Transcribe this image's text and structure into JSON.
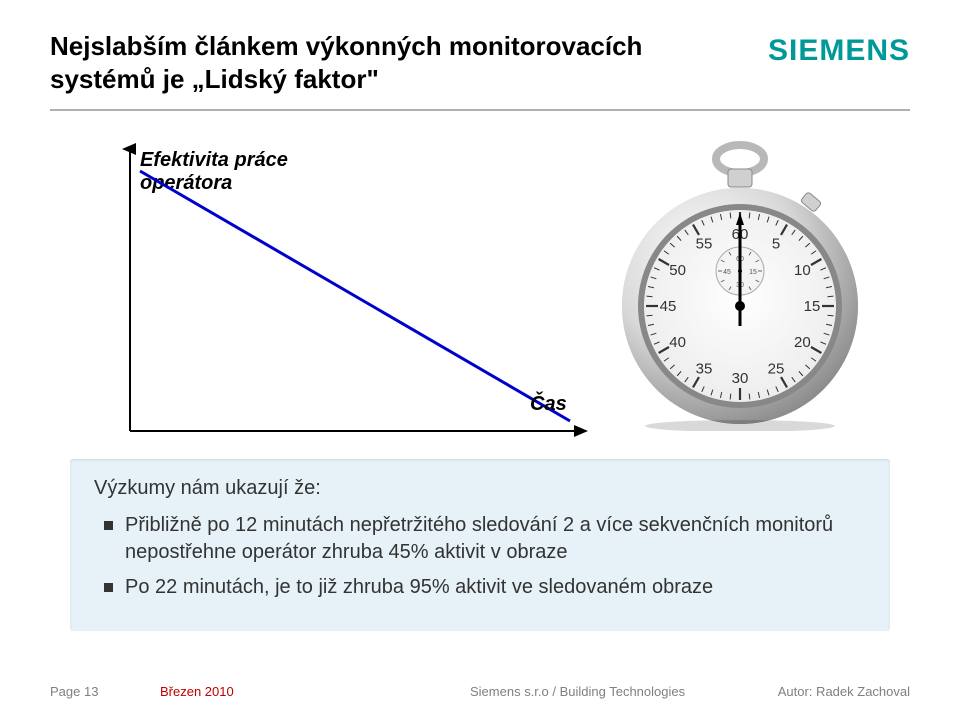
{
  "brand": {
    "name": "SIEMENS",
    "color": "#009999"
  },
  "title": {
    "line1": "Nejslabším článkem výkonných monitorovacích",
    "line2": "systémů je „Lidský faktor\"",
    "fontsize": 26,
    "fontweight": "bold",
    "color": "#000000"
  },
  "chart": {
    "type": "line",
    "ylabel_line1": "Efektivita práce",
    "ylabel_line2": "operátora",
    "xlabel": "Čas",
    "label_fontsize": 20,
    "label_style": "italic bold",
    "axis_color": "#000000",
    "axis_width": 2,
    "line_color": "#0000cc",
    "line_width": 3,
    "background_color": "#ffffff",
    "points": [
      {
        "x": 0.02,
        "y": 0.95
      },
      {
        "x": 0.98,
        "y": 0.05
      }
    ],
    "xlim": [
      0,
      1
    ],
    "ylim": [
      0,
      1
    ]
  },
  "stopwatch": {
    "type": "infographic-icon",
    "case_color": "#d8d8d8",
    "case_highlight": "#f8f8f8",
    "case_shadow": "#808080",
    "face_color": "#ffffff",
    "tick_color": "#333333",
    "number_color": "#333333",
    "hand_color": "#000000",
    "crown_color": "#d0d0d0",
    "bow_color": "#c0c0c0",
    "subdial_color": "#f4f4f4",
    "numbers": [
      "60",
      "5",
      "10",
      "15",
      "20",
      "25",
      "30",
      "35",
      "40",
      "45",
      "50",
      "55"
    ],
    "subdial_numbers": [
      "60",
      "15",
      "30",
      "45"
    ]
  },
  "bullets": {
    "box_bg": "#e6f2f8",
    "lead": "Výzkumy nám ukazují že:",
    "items": [
      "Přibližně po 12 minutách nepřetržitého sledování 2 a více sekvenčních monitorů nepostřehne operátor zhruba 45% aktivit v obraze",
      "Po 22 minutách, je to již zhruba 95% aktivit ve sledovaném obraze"
    ],
    "fontsize": 20,
    "text_color": "#333333",
    "bullet_color": "#333333"
  },
  "footer": {
    "page": "Page 13",
    "date": "Březen 2010",
    "center": "Siemens s.r.o / Building Technologies",
    "author": "Autor: Radek Zachoval",
    "page_color": "#808080",
    "date_color": "#c00000",
    "fontsize": 13
  }
}
